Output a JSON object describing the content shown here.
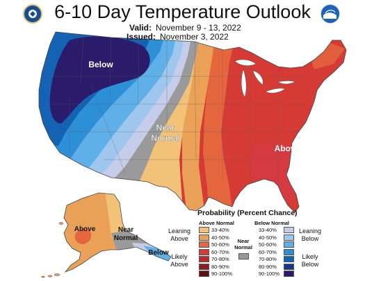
{
  "header": {
    "title": "6-10 Day Temperature Outlook",
    "valid_label": "Valid:",
    "valid_value": "November 9 - 13, 2022",
    "issued_label": "Issued:",
    "issued_value": "November 3, 2022"
  },
  "logos": {
    "left": "doc-seal-icon",
    "right": "noaa-logo-icon"
  },
  "map_labels": {
    "below": "Below",
    "near_normal_1": "Near",
    "near_normal_2": "Normal",
    "above": "Above",
    "ak_above": "Above",
    "ak_near_1": "Near",
    "ak_near_2": "Normal",
    "ak_below": "Below"
  },
  "legend": {
    "title": "Probability (Percent Chance)",
    "above_head": "Above Normal",
    "below_head": "Below Normal",
    "near_head_1": "Near",
    "near_head_2": "Normal",
    "leaning_above_1": "Leaning",
    "leaning_above_2": "Above",
    "likely_above_1": "Likely",
    "likely_above_2": "Above",
    "leaning_below_1": "Leaning",
    "leaning_below_2": "Below",
    "likely_below_1": "Likely",
    "likely_below_2": "Below",
    "above_bins": [
      {
        "label": "33-40%",
        "color": "#f2c278"
      },
      {
        "label": "40-50%",
        "color": "#eba058"
      },
      {
        "label": "50-60%",
        "color": "#e3663d"
      },
      {
        "label": "60-70%",
        "color": "#d63a34"
      },
      {
        "label": "70-80%",
        "color": "#b82a2d"
      },
      {
        "label": "80-90%",
        "color": "#8e1c22"
      },
      {
        "label": "90-100%",
        "color": "#5e1015"
      }
    ],
    "below_bins": [
      {
        "label": "33-40%",
        "color": "#c5cdea"
      },
      {
        "label": "40-50%",
        "color": "#9fc7ee"
      },
      {
        "label": "50-60%",
        "color": "#5fb0e8"
      },
      {
        "label": "60-70%",
        "color": "#2d8fd6"
      },
      {
        "label": "70-80%",
        "color": "#1462b4"
      },
      {
        "label": "80-90%",
        "color": "#17368e"
      },
      {
        "label": "90-100%",
        "color": "#2a1b6b"
      }
    ],
    "near_color": "#9a9a9a"
  }
}
